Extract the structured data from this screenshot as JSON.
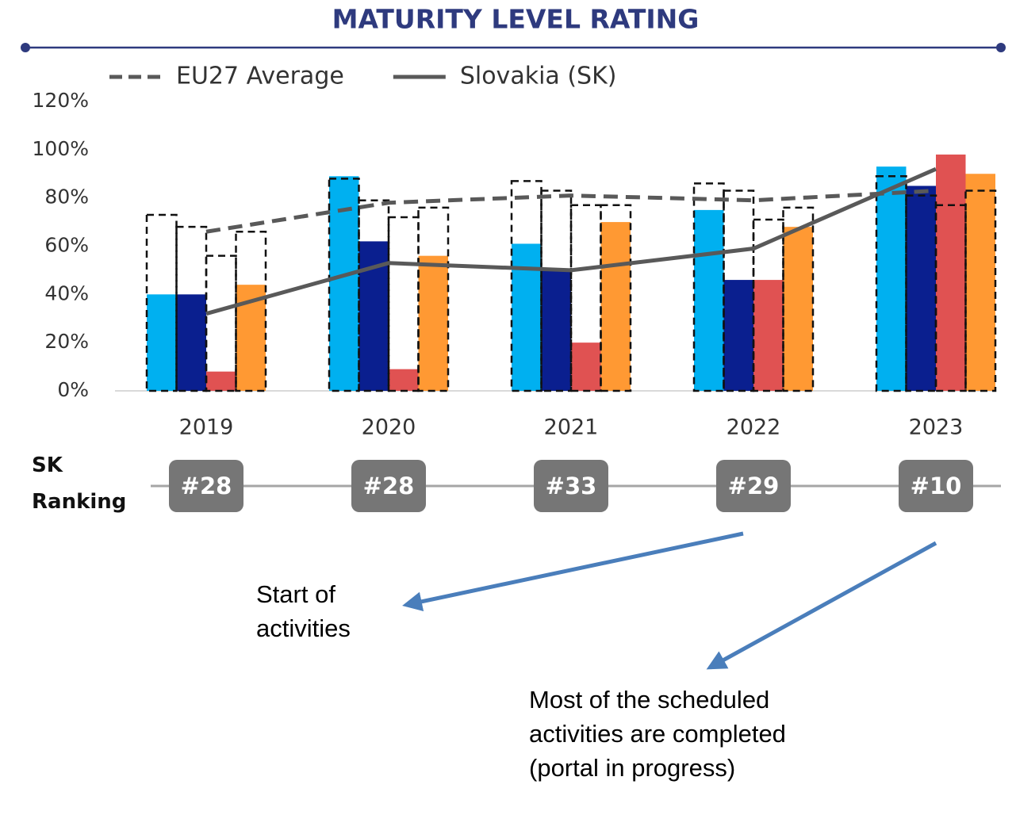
{
  "chart_data": {
    "type": "bar",
    "title": "MATURITY LEVEL RATING",
    "categories": [
      "2019",
      "2020",
      "2021",
      "2022",
      "2023"
    ],
    "ylim": [
      0,
      120
    ],
    "yticks": [
      {
        "value": 0,
        "label": "0%"
      },
      {
        "value": 20,
        "label": "20%"
      },
      {
        "value": 40,
        "label": "40%"
      },
      {
        "value": 60,
        "label": "60%"
      },
      {
        "value": 80,
        "label": "80%"
      },
      {
        "value": 100,
        "label": "100%"
      },
      {
        "value": 120,
        "label": "120%"
      }
    ],
    "series": [
      {
        "type": "bar",
        "color": "#00b0f0",
        "values": [
          40,
          89,
          61,
          75,
          93
        ]
      },
      {
        "type": "bar",
        "color": "#0a1f8f",
        "values": [
          40,
          62,
          50,
          46,
          85
        ]
      },
      {
        "type": "bar",
        "color": "#e05252",
        "values": [
          8,
          9,
          20,
          46,
          98
        ]
      },
      {
        "type": "bar",
        "color": "#ff9933",
        "values": [
          44,
          56,
          70,
          68,
          90
        ]
      },
      {
        "type": "outline",
        "color": "#111111",
        "values": [
          73,
          88,
          87,
          86,
          89
        ]
      },
      {
        "type": "outline",
        "color": "#111111",
        "values": [
          68,
          79,
          83,
          83,
          81
        ]
      },
      {
        "type": "outline",
        "color": "#111111",
        "values": [
          56,
          72,
          77,
          71,
          77
        ]
      },
      {
        "type": "outline",
        "color": "#111111",
        "values": [
          66,
          76,
          77,
          76,
          83
        ]
      },
      {
        "type": "line",
        "name": "EU27 Average",
        "color": "#595959",
        "dashed": true,
        "values": [
          66,
          78,
          81,
          79,
          83
        ]
      },
      {
        "type": "line",
        "name": "Slovakia (SK)",
        "color": "#595959",
        "dashed": false,
        "values": [
          32,
          53,
          50,
          59,
          92
        ]
      }
    ],
    "ranking_label": "SK Ranking",
    "rankings": [
      "#28",
      "#28",
      "#33",
      "#29",
      "#10"
    ],
    "annotations": [
      "Start of activities",
      "Most of the scheduled activities are completed (portal in progress)"
    ]
  }
}
